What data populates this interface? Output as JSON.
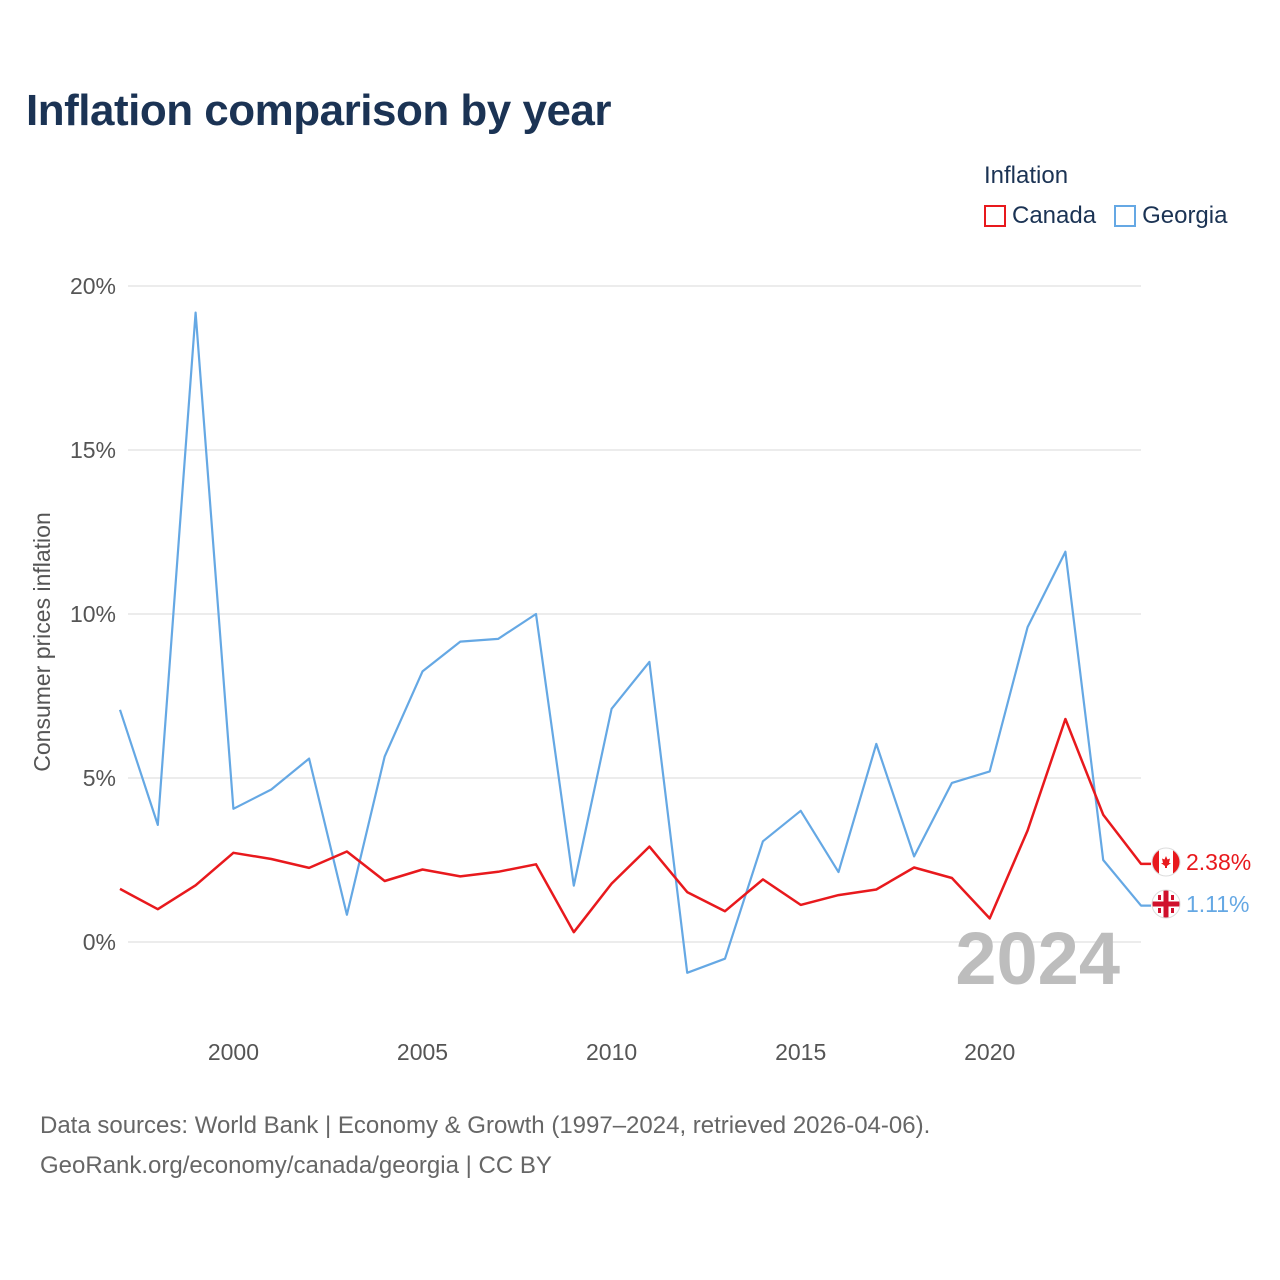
{
  "title": "Inflation comparison by year",
  "legend": {
    "title": "Inflation",
    "items": [
      {
        "label": "Canada",
        "color": "#e8191d"
      },
      {
        "label": "Georgia",
        "color": "#65a8e4"
      }
    ]
  },
  "source": {
    "line1": "Data sources: World Bank | Economy & Growth (1997–2024, retrieved 2026-04-06).",
    "line2": "GeoRank.org/economy/canada/georgia | CC BY"
  },
  "chart_data": {
    "type": "line",
    "title": "Inflation comparison by year",
    "xlabel": "",
    "ylabel": "Consumer prices inflation",
    "xlim": [
      1997,
      2024
    ],
    "ylim": [
      -2,
      20
    ],
    "x_ticks": [
      2000,
      2005,
      2010,
      2015,
      2020
    ],
    "y_ticks": [
      0,
      5,
      10,
      15,
      20
    ],
    "y_tick_labels": [
      "0%",
      "5%",
      "10%",
      "15%",
      "20%"
    ],
    "grid": true,
    "legend_position": "top-right",
    "current_year_label": "2024",
    "x": [
      1997,
      1998,
      1999,
      2000,
      2001,
      2002,
      2003,
      2004,
      2005,
      2006,
      2007,
      2008,
      2009,
      2010,
      2011,
      2012,
      2013,
      2014,
      2015,
      2016,
      2017,
      2018,
      2019,
      2020,
      2021,
      2022,
      2023,
      2024
    ],
    "series": [
      {
        "name": "Canada",
        "color": "#e8191d",
        "end_label": "2.38%",
        "flag": "canada-flag-icon",
        "values": [
          1.62,
          1.0,
          1.73,
          2.72,
          2.53,
          2.26,
          2.76,
          1.86,
          2.21,
          2.0,
          2.14,
          2.37,
          0.3,
          1.78,
          2.91,
          1.52,
          0.94,
          1.91,
          1.13,
          1.43,
          1.6,
          2.27,
          1.95,
          0.72,
          3.4,
          6.8,
          3.88,
          2.38
        ]
      },
      {
        "name": "Georgia",
        "color": "#65a8e4",
        "end_label": "1.11%",
        "flag": "georgia-flag-icon",
        "values": [
          7.08,
          3.57,
          19.19,
          4.06,
          4.65,
          5.59,
          0.83,
          5.66,
          8.25,
          9.16,
          9.24,
          10.0,
          1.72,
          7.11,
          8.54,
          -0.94,
          -0.51,
          3.07,
          4.0,
          2.13,
          6.04,
          2.61,
          4.85,
          5.2,
          9.6,
          11.9,
          2.5,
          1.11
        ]
      }
    ]
  }
}
